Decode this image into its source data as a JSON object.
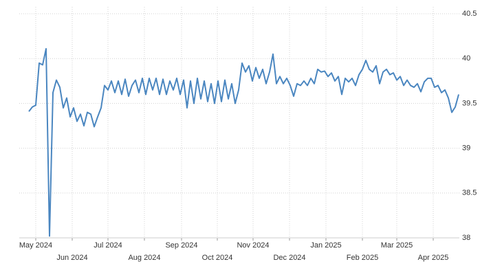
{
  "chart_data": {
    "type": "line",
    "series": [
      {
        "color": "#4a86c0",
        "values": [
          39.41,
          39.46,
          39.48,
          39.95,
          39.93,
          40.11,
          38.02,
          39.62,
          39.76,
          39.68,
          39.45,
          39.56,
          39.35,
          39.45,
          39.3,
          39.38,
          39.25,
          39.4,
          39.38,
          39.24,
          39.35,
          39.45,
          39.7,
          39.65,
          39.75,
          39.62,
          39.75,
          39.6,
          39.77,
          39.58,
          39.7,
          39.76,
          39.62,
          39.78,
          39.6,
          39.78,
          39.65,
          39.78,
          39.6,
          39.77,
          39.6,
          39.75,
          39.65,
          39.78,
          39.6,
          39.76,
          39.45,
          39.75,
          39.5,
          39.78,
          39.55,
          39.75,
          39.52,
          39.72,
          39.5,
          39.75,
          39.52,
          39.76,
          39.55,
          39.72,
          39.5,
          39.65,
          39.95,
          39.85,
          39.92,
          39.75,
          39.9,
          39.78,
          39.88,
          39.72,
          39.85,
          40.05,
          39.72,
          39.8,
          39.72,
          39.78,
          39.7,
          39.58,
          39.72,
          39.7,
          39.75,
          39.7,
          39.78,
          39.72,
          39.88,
          39.85,
          39.86,
          39.8,
          39.84,
          39.75,
          39.8,
          39.6,
          39.78,
          39.74,
          39.78,
          39.7,
          39.82,
          39.88,
          39.98,
          39.88,
          39.85,
          39.92,
          39.72,
          39.85,
          39.88,
          39.82,
          39.84,
          39.76,
          39.8,
          39.7,
          39.76,
          39.7,
          39.68,
          39.72,
          39.63,
          39.74,
          39.78,
          39.78,
          39.68,
          39.7,
          39.62,
          39.65,
          39.56,
          39.4,
          39.46,
          39.6
        ]
      }
    ],
    "xlim": [
      0,
      125
    ],
    "xticks": [
      {
        "value": 2,
        "label": "May 2024"
      },
      {
        "value": 12.6,
        "label": "Jun 2024"
      },
      {
        "value": 23,
        "label": "Jul 2024"
      },
      {
        "value": 33.6,
        "label": "Aug 2024"
      },
      {
        "value": 44.4,
        "label": "Sep 2024"
      },
      {
        "value": 54.8,
        "label": "Oct 2024"
      },
      {
        "value": 65.2,
        "label": "Nov 2024"
      },
      {
        "value": 75.8,
        "label": "Dec 2024"
      },
      {
        "value": 86.4,
        "label": "Jan 2025"
      },
      {
        "value": 97,
        "label": "Feb 2025"
      },
      {
        "value": 107,
        "label": "Mar 2025"
      },
      {
        "value": 117.6,
        "label": "Apr 2025"
      }
    ],
    "ylim": [
      38,
      40.5
    ],
    "yticks": [
      38,
      38.5,
      39,
      39.5,
      40,
      40.5
    ],
    "grid": true
  }
}
